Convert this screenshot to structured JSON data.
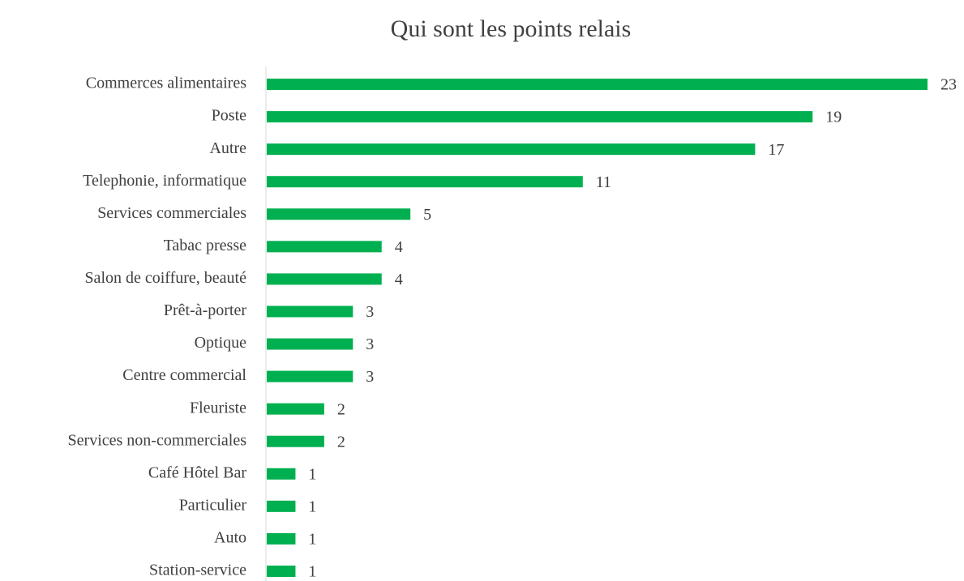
{
  "chart_data": {
    "type": "bar",
    "orientation": "horizontal",
    "title": "Qui sont les points relais",
    "categories": [
      "Commerces alimentaires",
      "Poste",
      "Autre",
      "Telephonie, informatique",
      "Services commerciales",
      "Tabac presse",
      "Salon de coiffure, beauté",
      "Prêt-à-porter",
      "Optique",
      "Centre commercial",
      "Fleuriste",
      "Services non-commerciales",
      "Café Hôtel Bar",
      "Particulier",
      "Auto",
      "Station-service"
    ],
    "values": [
      23,
      19,
      17,
      11,
      5,
      4,
      4,
      3,
      3,
      3,
      2,
      2,
      1,
      1,
      1,
      1
    ],
    "color": "#00b050"
  }
}
